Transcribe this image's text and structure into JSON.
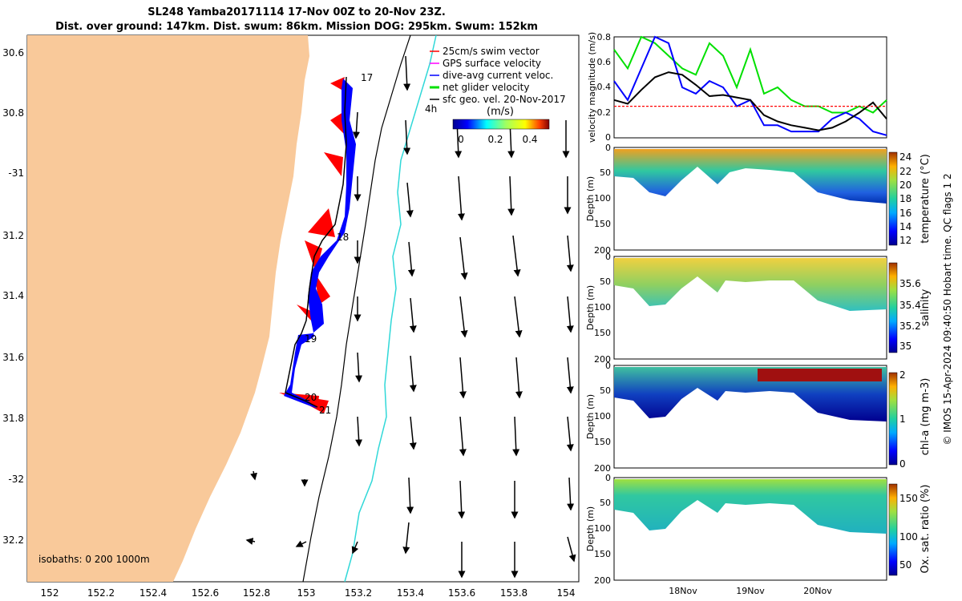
{
  "title": {
    "line1": "SL248 Yamba20171114 17-Nov 00Z to 20-Nov 23Z.",
    "line2": "Dist. over ground: 147km. Dist. swum: 86km. Mission DOG: 295km. Swum: 152km"
  },
  "credit": "© IMOS 15-Apr-2024 09:40:50 Hobart time. QC flags 1  2",
  "colors": {
    "land": "#f9c99a",
    "track": "#000000",
    "swim_vector": "#ff0000",
    "dive_avg": "#0000ff",
    "net_glider": "#00e000",
    "isobath_200": "#30d8d8",
    "isobath_1000": "#000000"
  },
  "map": {
    "lat_ticks": [
      "30.6",
      "30.8",
      "-31",
      "31.2",
      "31.4",
      "31.6",
      "31.8",
      "-32",
      "32.2"
    ],
    "lon_ticks": [
      "152",
      "152.2",
      "152.4",
      "152.6",
      "152.8",
      "153",
      "153.2",
      "153.4",
      "153.6",
      "153.8",
      "154"
    ],
    "day_labels": [
      "17",
      "18",
      "19",
      "20",
      "21"
    ],
    "hour_label": "4h",
    "legend": [
      {
        "label": "25cm/s swim vector",
        "color": "#ff0000",
        "icon": "arrow-icon"
      },
      {
        "label": "GPS surface velocity",
        "color": "#ff00ff",
        "icon": "arrow-icon"
      },
      {
        "label": "dive-avg current veloc.",
        "color": "#0000ff",
        "icon": "arrow-icon"
      },
      {
        "label": "net glider velocity",
        "color": "#00e000",
        "icon": "arrow-icon"
      },
      {
        "label": "sfc geo. vel. 20-Nov-2017",
        "color": "#000000",
        "icon": "arrow-icon"
      }
    ],
    "colorbar_unit": "(m/s)",
    "colorbar_ticks": [
      "0",
      "0.2",
      "0.4"
    ],
    "isobaths_label": "isobaths: 0   200  1000m"
  },
  "chart_data": [
    {
      "type": "line",
      "ylabel": "velocity magnitude (m/s)",
      "ylim": [
        0,
        0.8
      ],
      "yticks": [
        "0",
        "0.2",
        "0.4",
        "0.6",
        "0.8"
      ],
      "x": [
        0,
        0.05,
        0.1,
        0.15,
        0.2,
        0.25,
        0.3,
        0.35,
        0.4,
        0.45,
        0.5,
        0.55,
        0.6,
        0.65,
        0.7,
        0.75,
        0.8,
        0.85,
        0.9,
        0.95,
        1.0
      ],
      "series": [
        {
          "color": "#00e000",
          "values": [
            0.7,
            0.55,
            0.8,
            0.75,
            0.65,
            0.55,
            0.5,
            0.75,
            0.65,
            0.4,
            0.7,
            0.35,
            0.4,
            0.3,
            0.25,
            0.25,
            0.2,
            0.2,
            0.25,
            0.2,
            0.3
          ]
        },
        {
          "color": "#0000ff",
          "values": [
            0.45,
            0.3,
            0.55,
            0.8,
            0.75,
            0.4,
            0.35,
            0.45,
            0.4,
            0.25,
            0.3,
            0.1,
            0.1,
            0.05,
            0.05,
            0.05,
            0.15,
            0.2,
            0.15,
            0.05,
            0.02
          ]
        },
        {
          "color": "#000000",
          "values": [
            0.3,
            0.27,
            0.38,
            0.48,
            0.52,
            0.5,
            0.42,
            0.33,
            0.34,
            0.32,
            0.3,
            0.18,
            0.13,
            0.1,
            0.08,
            0.06,
            0.08,
            0.13,
            0.2,
            0.28,
            0.15
          ]
        },
        {
          "color": "#ff0000",
          "values": [
            0.25,
            0.25,
            0.25,
            0.25,
            0.25,
            0.25,
            0.25,
            0.25,
            0.25,
            0.25,
            0.25,
            0.25,
            0.25,
            0.25,
            0.25,
            0.25,
            0.25,
            0.25,
            0.25,
            0.25,
            0.25
          ]
        }
      ]
    },
    {
      "type": "heatmap",
      "ylabel": "Depth (m)",
      "yticks": [
        "0",
        "50",
        "100",
        "150",
        "200"
      ],
      "colorbar_label": "temperature (°C)",
      "colorbar_ticks": [
        "24",
        "22",
        "20",
        "18",
        "16",
        "14",
        "12"
      ]
    },
    {
      "type": "heatmap",
      "ylabel": "Depth (m)",
      "yticks": [
        "0",
        "50",
        "100",
        "150",
        "200"
      ],
      "colorbar_label": "salinity",
      "colorbar_ticks": [
        "35.6",
        "35.4",
        "35.2",
        "35"
      ]
    },
    {
      "type": "heatmap",
      "ylabel": "Depth (m)",
      "yticks": [
        "0",
        "50",
        "100",
        "150",
        "200"
      ],
      "colorbar_label": "chl-a (mg m-3)",
      "colorbar_ticks": [
        "2",
        "1",
        "0"
      ]
    },
    {
      "type": "heatmap",
      "ylabel": "Depth (m)",
      "yticks": [
        "0",
        "50",
        "100",
        "150",
        "200"
      ],
      "xticks": [
        "18Nov",
        "19Nov",
        "20Nov"
      ],
      "colorbar_label": "Ox. sat. ratio (%)",
      "colorbar_ticks": [
        "150",
        "100",
        "50"
      ]
    }
  ]
}
